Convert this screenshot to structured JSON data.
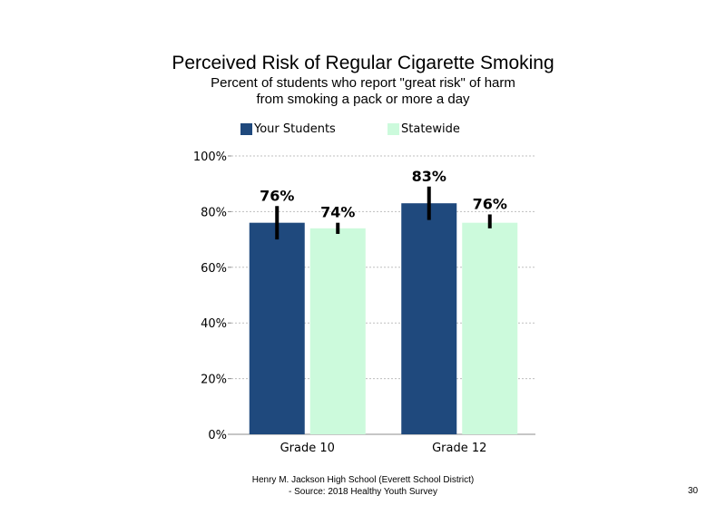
{
  "chart_data": {
    "type": "bar",
    "title": "Perceived Risk of Regular Cigarette Smoking",
    "subtitle": [
      "Percent of students who report \"great risk\" of harm",
      "from smoking a pack or more a day"
    ],
    "categories": [
      "Grade 10",
      "Grade 12"
    ],
    "series": [
      {
        "name": "Your Students",
        "color": "#1f497d",
        "values": [
          76,
          83
        ],
        "labels": [
          "76%",
          "83%"
        ],
        "error_low": [
          70,
          77
        ],
        "error_high": [
          82,
          89
        ]
      },
      {
        "name": "Statewide",
        "color": "#ccfadc",
        "values": [
          74,
          76
        ],
        "labels": [
          "74%",
          "76%"
        ],
        "error_low": [
          72,
          74
        ],
        "error_high": [
          76,
          79
        ]
      }
    ],
    "yticks": [
      "0%",
      "20%",
      "40%",
      "60%",
      "80%",
      "100%"
    ],
    "ylim": [
      0,
      100
    ],
    "grid": true,
    "legend": "top"
  },
  "footer": {
    "line1": "Henry M. Jackson High School (Everett School District)",
    "line2": "- Source: 2018 Healthy Youth Survey",
    "page": "30"
  }
}
